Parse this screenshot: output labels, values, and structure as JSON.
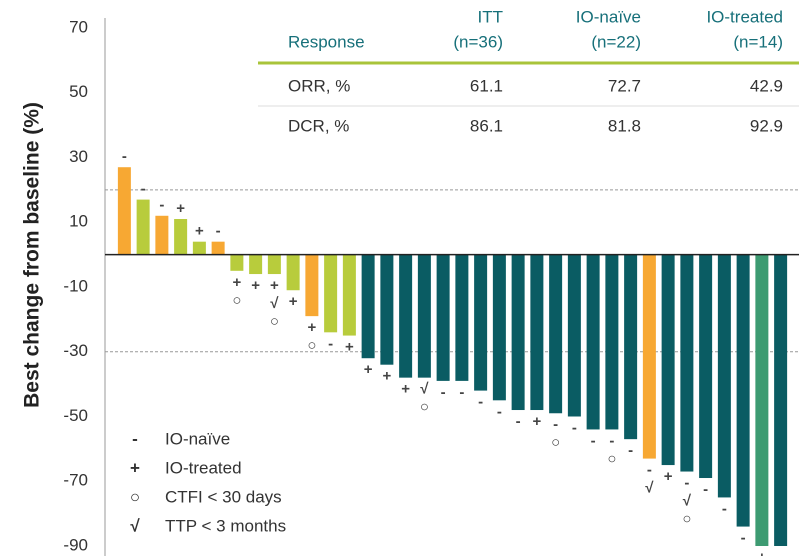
{
  "chart_data": {
    "type": "bar",
    "y_label": "Best change from baseline (%)",
    "ylim": [
      -90,
      70
    ],
    "yticks": [
      70,
      50,
      30,
      10,
      -10,
      -30,
      -50,
      -70,
      -90
    ],
    "reference_lines": [
      20,
      -30
    ],
    "values": [
      27,
      17,
      12,
      11,
      4,
      4,
      -5,
      -6,
      -6,
      -11,
      -19,
      -24,
      -25,
      -32,
      -34,
      -38,
      -38,
      -39,
      -39,
      -42,
      -45,
      -48,
      -48,
      -49,
      -50,
      -54,
      -54,
      -57,
      -63,
      -65,
      -67,
      -69,
      -75,
      -84,
      -90,
      -90
    ],
    "colors": [
      "#f7a833",
      "#b8cc3c",
      "#f7a833",
      "#b8cc3c",
      "#b8cc3c",
      "#f7a833",
      "#b8cc3c",
      "#b8cc3c",
      "#b8cc3c",
      "#b8cc3c",
      "#f7a833",
      "#b8cc3c",
      "#b8cc3c",
      "#0a5c63",
      "#0a5c63",
      "#0a5c63",
      "#0a5c63",
      "#0a5c63",
      "#0a5c63",
      "#0a5c63",
      "#0a5c63",
      "#0a5c63",
      "#0a5c63",
      "#0a5c63",
      "#0a5c63",
      "#0a5c63",
      "#0a5c63",
      "#0a5c63",
      "#f7a833",
      "#0a5c63",
      "#0a5c63",
      "#0a5c63",
      "#0a5c63",
      "#0a5c63",
      "#3d9b72",
      "#0a5c63"
    ],
    "markers": [
      [
        "-"
      ],
      [
        "-"
      ],
      [
        "-"
      ],
      [
        "+"
      ],
      [
        "+"
      ],
      [
        "-"
      ],
      [
        "+",
        "○"
      ],
      [
        "+"
      ],
      [
        "+",
        "√",
        "○"
      ],
      [
        "+"
      ],
      [
        "+",
        "○"
      ],
      [
        "-"
      ],
      [
        "+"
      ],
      [
        "+"
      ],
      [
        "+"
      ],
      [
        "+"
      ],
      [
        "√",
        "○"
      ],
      [
        "-"
      ],
      [
        "-"
      ],
      [
        "-"
      ],
      [
        "-"
      ],
      [
        "-"
      ],
      [
        "+"
      ],
      [
        "-",
        "○"
      ],
      [
        "-"
      ],
      [
        "-"
      ],
      [
        "-",
        "○"
      ],
      [
        "-"
      ],
      [
        "-",
        "√"
      ],
      [
        "+"
      ],
      [
        "-",
        "√",
        "○"
      ],
      [
        "-"
      ],
      [
        "-"
      ],
      [
        "-"
      ],
      [
        "+"
      ],
      [
        "-"
      ]
    ],
    "legend": [
      {
        "symbol": "-",
        "label": "IO-naïve"
      },
      {
        "symbol": "+",
        "label": "IO-treated"
      },
      {
        "symbol": "○",
        "label": "CTFI < 30 days"
      },
      {
        "symbol": "√",
        "label": "TTP < 3 months"
      }
    ],
    "table": {
      "header": [
        [
          "Response"
        ],
        [
          "ITT",
          "(n=36)"
        ],
        [
          "IO-naïve",
          "(n=22)"
        ],
        [
          "IO-treated",
          "(n=14)"
        ]
      ],
      "rows": [
        [
          "ORR, %",
          "61.1",
          "72.7",
          "42.9"
        ],
        [
          "DCR, %",
          "86.1",
          "81.8",
          "92.9"
        ]
      ]
    }
  }
}
